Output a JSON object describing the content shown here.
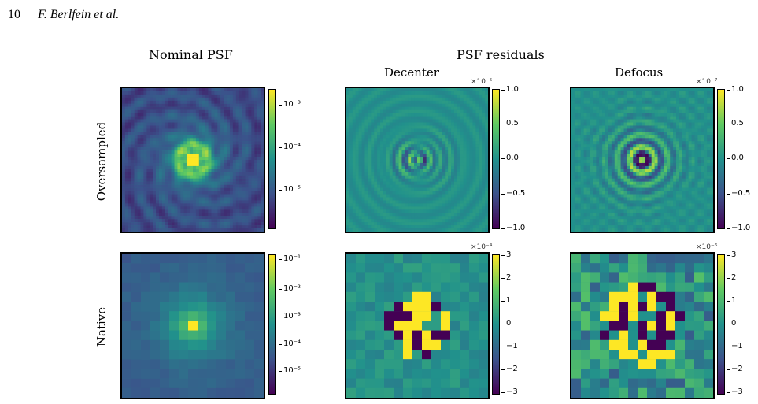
{
  "header": {
    "page_number": "10",
    "authors": "F. Berlfein et al."
  },
  "figure": {
    "main_titles": [
      "Nominal PSF",
      "PSF residuals"
    ],
    "column_titles": [
      "Decenter",
      "Defocus"
    ],
    "row_labels": [
      "Oversampled",
      "Native"
    ],
    "colormap": [
      "#440154",
      "#3b528b",
      "#21918c",
      "#5ec962",
      "#fde725"
    ],
    "panels": [
      {
        "row": "Oversampled",
        "column": "Nominal PSF",
        "type": "heatmap",
        "scale": "log",
        "colorbar_ticks": [
          "10⁻³",
          "10⁻⁴",
          "10⁻⁵"
        ],
        "multiplier": ""
      },
      {
        "row": "Oversampled",
        "column": "Decenter",
        "type": "heatmap",
        "scale": "linear",
        "colorbar_ticks": [
          "1.0",
          "0.5",
          "0.0",
          "−0.5",
          "−1.0"
        ],
        "multiplier": "×10⁻⁵",
        "vmin": -1.0,
        "vmax": 1.0
      },
      {
        "row": "Oversampled",
        "column": "Defocus",
        "type": "heatmap",
        "scale": "linear",
        "colorbar_ticks": [
          "1.0",
          "0.5",
          "0.0",
          "−0.5",
          "−1.0"
        ],
        "multiplier": "×10⁻⁷",
        "vmin": -1.0,
        "vmax": 1.0
      },
      {
        "row": "Native",
        "column": "Nominal PSF",
        "type": "heatmap",
        "scale": "log",
        "colorbar_ticks": [
          "10⁻¹",
          "10⁻²",
          "10⁻³",
          "10⁻⁴",
          "10⁻⁵"
        ],
        "multiplier": ""
      },
      {
        "row": "Native",
        "column": "Decenter",
        "type": "heatmap",
        "scale": "linear",
        "colorbar_ticks": [
          "3",
          "2",
          "1",
          "0",
          "−1",
          "−2",
          "−3"
        ],
        "multiplier": "×10⁻⁴",
        "vmin": -3,
        "vmax": 3
      },
      {
        "row": "Native",
        "column": "Defocus",
        "type": "heatmap",
        "scale": "linear",
        "colorbar_ticks": [
          "3",
          "2",
          "1",
          "0",
          "−1",
          "−2",
          "−3"
        ],
        "multiplier": "×10⁻⁶",
        "vmin": -3,
        "vmax": 3
      }
    ]
  }
}
